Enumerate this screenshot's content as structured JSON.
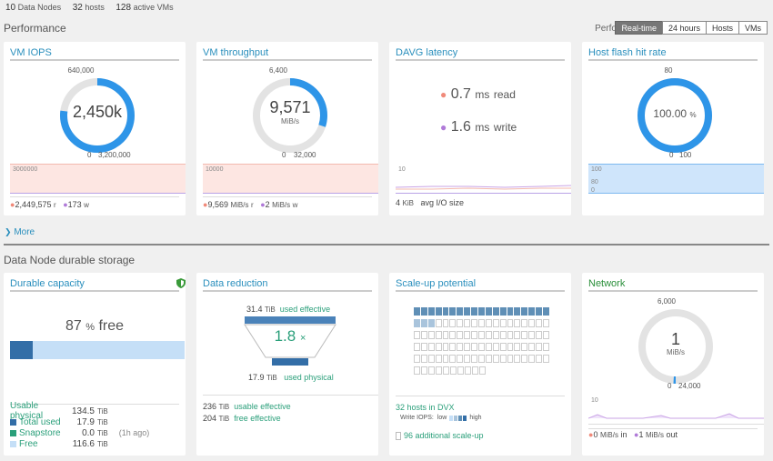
{
  "top_stats": [
    {
      "value": "10",
      "label": "Data Nodes"
    },
    {
      "value": "32",
      "label": "hosts"
    },
    {
      "value": "128",
      "label": "active VMs"
    }
  ],
  "performance": {
    "title": "Performance",
    "stats_label": "Performance stats:",
    "buttons": [
      "Real-time",
      "24 hours",
      "Hosts",
      "VMs"
    ],
    "active_button": "Real-time"
  },
  "vm_iops": {
    "title": "VM IOPS",
    "top_label": "640,000",
    "value": "2,450k",
    "bottom_left": "0",
    "bottom_right": "3,200,000",
    "fill_fraction": 0.77,
    "spark_label": "3000000",
    "read_value": "2,449,575",
    "read_suffix": "r",
    "write_value": "173",
    "write_suffix": "w"
  },
  "vm_throughput": {
    "title": "VM throughput",
    "top_label": "6,400",
    "value": "9,571",
    "unit": "MiB/s",
    "bottom_left": "0",
    "bottom_right": "32,000",
    "fill_fraction": 0.3,
    "spark_label": "10000",
    "read_value": "9,569",
    "read_unit": "MiB/s",
    "read_suffix": "r",
    "write_value": "2",
    "write_unit": "MiB/s",
    "write_suffix": "w"
  },
  "davg": {
    "title": "DAVG latency",
    "read_value": "0.7",
    "read_unit": "ms",
    "read_label": "read",
    "write_value": "1.6",
    "write_unit": "ms",
    "write_label": "write",
    "spark_label": "10",
    "avg_value": "4",
    "avg_unit": "KiB",
    "avg_label": "avg I/O size"
  },
  "flash": {
    "title": "Host flash hit rate",
    "top_label": "80",
    "value": "100.00",
    "unit": "%",
    "bottom_left": "0",
    "bottom_right": "100",
    "fill_fraction": 1.0,
    "spark_label_top": "100",
    "spark_label_mid": "80",
    "spark_label_bot": "0"
  },
  "more_label": "More",
  "storage": {
    "title": "Data Node durable storage"
  },
  "capacity": {
    "title": "Durable capacity",
    "percent": "87",
    "percent_unit": "%",
    "free_label": "free",
    "used_fraction": 0.13,
    "usable_label": "Usable physical",
    "usable_value": "134.5",
    "total_used_label": "Total used",
    "total_used_value": "17.9",
    "snapstore_label": "Snapstore",
    "snapstore_value": "0.0",
    "snapstore_note": "(1h ago)",
    "free_row_label": "Free",
    "free_value": "116.6",
    "unit": "TiB"
  },
  "reduction": {
    "title": "Data reduction",
    "top_value": "31.4",
    "top_unit": "TiB",
    "top_label": "used effective",
    "ratio": "1.8",
    "ratio_symbol": "×",
    "bottom_value": "17.9",
    "bottom_unit": "TiB",
    "bottom_label": "used physical",
    "row1_value": "236",
    "row1_unit": "TiB",
    "row1_label": "usable effective",
    "row2_value": "204",
    "row2_unit": "TiB",
    "row2_label": "free effective"
  },
  "scaleup": {
    "title": "Scale-up potential",
    "hosts_label": "32 hosts in DVX",
    "write_iops_label": "Write IOPS:",
    "low_label": "low",
    "high_label": "high",
    "additional_label": "96 additional scale-up"
  },
  "network": {
    "title": "Network",
    "top_label": "6,000",
    "value": "1",
    "unit": "MiB/s",
    "bottom_left": "0",
    "bottom_right": "24,000",
    "fill_fraction": 0.01,
    "spark_label": "10",
    "in_value": "0",
    "in_unit": "MiB/s",
    "in_label": "in",
    "out_value": "1",
    "out_unit": "MiB/s",
    "out_label": "out"
  },
  "colors": {
    "blue": "#2e95e8",
    "ring_bg": "#e3e3e3",
    "read_dot": "#f08a7a",
    "write_dot": "#b07ad8",
    "teal": "#2a9f7a",
    "title_blue": "#2a8fbd"
  }
}
